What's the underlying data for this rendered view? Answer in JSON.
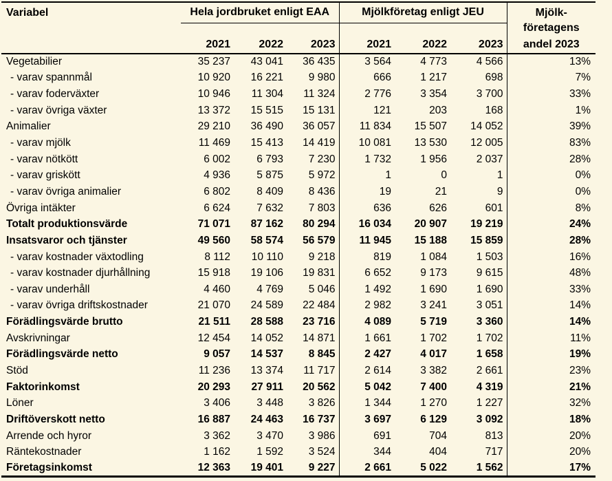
{
  "table": {
    "col_label": "Variabel",
    "group1": "Hela jordbruket enligt EAA",
    "group2": "Mjölkföretag enligt JEU",
    "andel_lines": {
      "l1": "Mjölk-",
      "l2": "företagens",
      "l3": "andel 2023"
    },
    "years_eaa": [
      "2021",
      "2022",
      "2023"
    ],
    "years_jeu": [
      "2021",
      "2022",
      "2023"
    ],
    "colors": {
      "background": "#FBF6E3",
      "border": "#000000",
      "text": "#000000"
    },
    "rows": [
      {
        "label": "Vegetabilier",
        "bold": false,
        "indent": false,
        "eaa": [
          "35 237",
          "43 041",
          "36 435"
        ],
        "jeu": [
          "3 564",
          "4 773",
          "4 566"
        ],
        "andel": "13%"
      },
      {
        "label": "- varav spannmål",
        "bold": false,
        "indent": true,
        "eaa": [
          "10 920",
          "16 221",
          "9 980"
        ],
        "jeu": [
          "666",
          "1 217",
          "698"
        ],
        "andel": "7%"
      },
      {
        "label": "- varav foderväxter",
        "bold": false,
        "indent": true,
        "eaa": [
          "10 946",
          "11 304",
          "11 324"
        ],
        "jeu": [
          "2 776",
          "3 354",
          "3 700"
        ],
        "andel": "33%"
      },
      {
        "label": "- varav övriga växter",
        "bold": false,
        "indent": true,
        "eaa": [
          "13 372",
          "15 515",
          "15 131"
        ],
        "jeu": [
          "121",
          "203",
          "168"
        ],
        "andel": "1%"
      },
      {
        "label": "Animalier",
        "bold": false,
        "indent": false,
        "eaa": [
          "29 210",
          "36 490",
          "36 057"
        ],
        "jeu": [
          "11 834",
          "15 507",
          "14 052"
        ],
        "andel": "39%"
      },
      {
        "label": "- varav mjölk",
        "bold": false,
        "indent": true,
        "eaa": [
          "11 469",
          "15 413",
          "14 419"
        ],
        "jeu": [
          "10 081",
          "13 530",
          "12 005"
        ],
        "andel": "83%"
      },
      {
        "label": "- varav nötkött",
        "bold": false,
        "indent": true,
        "eaa": [
          "6 002",
          "6 793",
          "7 230"
        ],
        "jeu": [
          "1 732",
          "1 956",
          "2 037"
        ],
        "andel": "28%"
      },
      {
        "label": "- varav griskött",
        "bold": false,
        "indent": true,
        "eaa": [
          "4 936",
          "5 875",
          "5 972"
        ],
        "jeu": [
          "1",
          "0",
          "1"
        ],
        "andel": "0%"
      },
      {
        "label": "- varav övriga animalier",
        "bold": false,
        "indent": true,
        "eaa": [
          "6 802",
          "8 409",
          "8 436"
        ],
        "jeu": [
          "19",
          "21",
          "9"
        ],
        "andel": "0%"
      },
      {
        "label": "Övriga intäkter",
        "bold": false,
        "indent": false,
        "eaa": [
          "6 624",
          "7 632",
          "7 803"
        ],
        "jeu": [
          "636",
          "626",
          "601"
        ],
        "andel": "8%"
      },
      {
        "label": "Totalt produktionsvärde",
        "bold": true,
        "indent": false,
        "eaa": [
          "71 071",
          "87 162",
          "80 294"
        ],
        "jeu": [
          "16 034",
          "20 907",
          "19 219"
        ],
        "andel": "24%"
      },
      {
        "label": "Insatsvaror och tjänster",
        "bold": true,
        "indent": false,
        "eaa": [
          "49 560",
          "58 574",
          "56 579"
        ],
        "jeu": [
          "11 945",
          "15 188",
          "15 859"
        ],
        "andel": "28%"
      },
      {
        "label": "- varav kostnader växtodling",
        "bold": false,
        "indent": true,
        "eaa": [
          "8 112",
          "10 110",
          "9 218"
        ],
        "jeu": [
          "819",
          "1 084",
          "1 503"
        ],
        "andel": "16%"
      },
      {
        "label": "- varav kostnader djurhållning",
        "bold": false,
        "indent": true,
        "eaa": [
          "15 918",
          "19 106",
          "19 831"
        ],
        "jeu": [
          "6 652",
          "9 173",
          "9 615"
        ],
        "andel": "48%"
      },
      {
        "label": "- varav underhåll",
        "bold": false,
        "indent": true,
        "eaa": [
          "4 460",
          "4 769",
          "5 046"
        ],
        "jeu": [
          "1 492",
          "1 690",
          "1 690"
        ],
        "andel": "33%"
      },
      {
        "label": "- varav övriga driftskostnader",
        "bold": false,
        "indent": true,
        "eaa": [
          "21 070",
          "24 589",
          "22 484"
        ],
        "jeu": [
          "2 982",
          "3 241",
          "3 051"
        ],
        "andel": "14%"
      },
      {
        "label": "Förädlingsvärde brutto",
        "bold": true,
        "indent": false,
        "eaa": [
          "21 511",
          "28 588",
          "23 716"
        ],
        "jeu": [
          "4 089",
          "5 719",
          "3 360"
        ],
        "andel": "14%"
      },
      {
        "label": "Avskrivningar",
        "bold": false,
        "indent": false,
        "eaa": [
          "12 454",
          "14 052",
          "14 871"
        ],
        "jeu": [
          "1 661",
          "1 702",
          "1 702"
        ],
        "andel": "11%"
      },
      {
        "label": "Förädlingsvärde netto",
        "bold": true,
        "indent": false,
        "eaa": [
          "9 057",
          "14 537",
          "8 845"
        ],
        "jeu": [
          "2 427",
          "4 017",
          "1 658"
        ],
        "andel": "19%"
      },
      {
        "label": "Stöd",
        "bold": false,
        "indent": false,
        "eaa": [
          "11 236",
          "13 374",
          "11 717"
        ],
        "jeu": [
          "2 614",
          "3 382",
          "2 661"
        ],
        "andel": "23%"
      },
      {
        "label": "Faktorinkomst",
        "bold": true,
        "indent": false,
        "eaa": [
          "20 293",
          "27 911",
          "20 562"
        ],
        "jeu": [
          "5 042",
          "7 400",
          "4 319"
        ],
        "andel": "21%"
      },
      {
        "label": "Löner",
        "bold": false,
        "indent": false,
        "eaa": [
          "3 406",
          "3 448",
          "3 826"
        ],
        "jeu": [
          "1 344",
          "1 270",
          "1 227"
        ],
        "andel": "32%"
      },
      {
        "label": "Driftöverskott netto",
        "bold": true,
        "indent": false,
        "eaa": [
          "16 887",
          "24 463",
          "16 737"
        ],
        "jeu": [
          "3 697",
          "6 129",
          "3 092"
        ],
        "andel": "18%"
      },
      {
        "label": "Arrende och hyror",
        "bold": false,
        "indent": false,
        "eaa": [
          "3 362",
          "3 470",
          "3 986"
        ],
        "jeu": [
          "691",
          "704",
          "813"
        ],
        "andel": "20%"
      },
      {
        "label": "Räntekostnader",
        "bold": false,
        "indent": false,
        "eaa": [
          "1 162",
          "1 592",
          "3 524"
        ],
        "jeu": [
          "344",
          "404",
          "717"
        ],
        "andel": "20%"
      },
      {
        "label": "Företagsinkomst",
        "bold": true,
        "indent": false,
        "eaa": [
          "12 363",
          "19 401",
          "9 227"
        ],
        "jeu": [
          "2 661",
          "5 022",
          "1 562"
        ],
        "andel": "17%"
      }
    ]
  }
}
